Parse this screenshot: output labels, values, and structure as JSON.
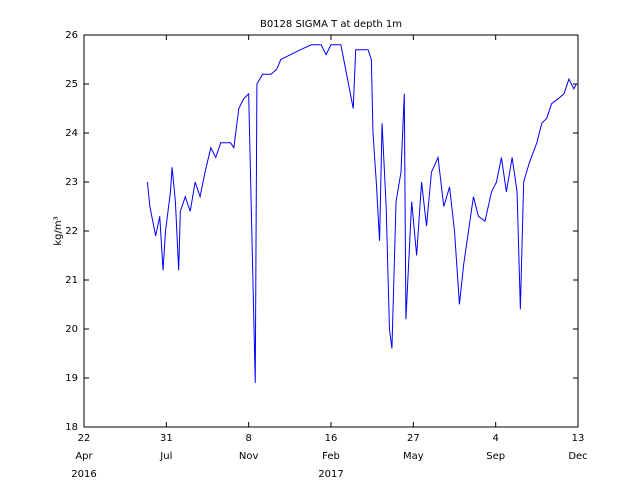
{
  "chart_data": {
    "type": "line",
    "title": "B0128 SIGMA T at depth 1m",
    "y_label": "kg/m³",
    "color": "#0000ff",
    "x": [
      "2016-07-08",
      "2016-07-11",
      "2016-07-18",
      "2016-07-23",
      "2016-07-27",
      "2016-07-30",
      "2016-08-05",
      "2016-08-07",
      "2016-08-11",
      "2016-08-15",
      "2016-08-17",
      "2016-08-23",
      "2016-08-29",
      "2016-09-04",
      "2016-09-10",
      "2016-09-16",
      "2016-09-23",
      "2016-09-29",
      "2016-10-05",
      "2016-10-17",
      "2016-10-21",
      "2016-10-27",
      "2016-11-02",
      "2016-11-08",
      "2016-11-16",
      "2016-11-18",
      "2016-11-25",
      "2016-12-05",
      "2016-12-12",
      "2016-12-17",
      "2016-12-29",
      "2017-01-10",
      "2017-01-23",
      "2017-02-04",
      "2017-02-10",
      "2017-02-16",
      "2017-02-28",
      "2017-03-15",
      "2017-03-18",
      "2017-04-02",
      "2017-04-06",
      "2017-04-08",
      "2017-04-12",
      "2017-04-16",
      "2017-04-19",
      "2017-04-24",
      "2017-04-28",
      "2017-05-01",
      "2017-05-06",
      "2017-05-12",
      "2017-05-16",
      "2017-05-18",
      "2017-05-25",
      "2017-05-31",
      "2017-06-06",
      "2017-06-12",
      "2017-06-18",
      "2017-06-26",
      "2017-07-03",
      "2017-07-10",
      "2017-07-16",
      "2017-07-22",
      "2017-07-27",
      "2017-08-02",
      "2017-08-08",
      "2017-08-14",
      "2017-08-22",
      "2017-08-30",
      "2017-09-05",
      "2017-09-11",
      "2017-09-17",
      "2017-09-24",
      "2017-09-30",
      "2017-10-04",
      "2017-10-08",
      "2017-10-15",
      "2017-10-24",
      "2017-10-30",
      "2017-11-05",
      "2017-11-11",
      "2017-11-19",
      "2017-11-26",
      "2017-12-02",
      "2017-12-08",
      "2017-12-11"
    ],
    "values": [
      23.0,
      22.5,
      21.9,
      22.3,
      21.2,
      22.0,
      22.8,
      23.3,
      22.6,
      21.2,
      22.4,
      22.7,
      22.4,
      23.0,
      22.7,
      23.2,
      23.7,
      23.5,
      23.8,
      23.8,
      23.7,
      24.5,
      24.7,
      24.8,
      18.9,
      25.0,
      25.2,
      25.2,
      25.3,
      25.5,
      25.6,
      25.7,
      25.8,
      25.8,
      25.6,
      25.8,
      25.8,
      24.5,
      25.7,
      25.7,
      25.5,
      24.0,
      23.0,
      21.8,
      24.2,
      22.5,
      20.0,
      19.6,
      22.6,
      23.2,
      24.8,
      20.2,
      22.6,
      21.5,
      23.0,
      22.1,
      23.2,
      23.5,
      22.5,
      22.9,
      22.0,
      20.5,
      21.3,
      22.0,
      22.7,
      22.3,
      22.2,
      22.8,
      23.0,
      23.5,
      22.8,
      23.5,
      22.8,
      20.4,
      23.0,
      23.4,
      23.8,
      24.2,
      24.3,
      24.6,
      24.7,
      24.8,
      25.1,
      24.9,
      25.0
    ],
    "xlim": [
      "2016-04-22",
      "2017-12-13"
    ],
    "xticks": [
      {
        "value": "2016-04-22",
        "label": "22",
        "month": "Apr",
        "year": "2016"
      },
      {
        "value": "2016-07-31",
        "label": "31",
        "month": "Jul"
      },
      {
        "value": "2016-11-08",
        "label": "8",
        "month": "Nov"
      },
      {
        "value": "2017-02-16",
        "label": "16",
        "month": "Feb",
        "year": "2017"
      },
      {
        "value": "2017-05-27",
        "label": "27",
        "month": "May"
      },
      {
        "value": "2017-09-04",
        "label": "4",
        "month": "Sep"
      },
      {
        "value": "2017-12-13",
        "label": "13",
        "month": "Dec"
      }
    ],
    "ylim": [
      18,
      26
    ],
    "yticks": [
      18,
      19,
      20,
      21,
      22,
      23,
      24,
      25,
      26
    ],
    "grid": false
  }
}
